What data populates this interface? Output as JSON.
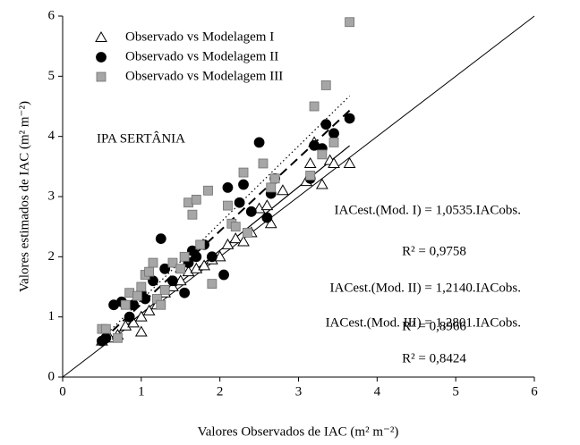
{
  "chart_data": {
    "type": "scatter",
    "xlabel": "Valores Observados de IAC (m² m⁻²)",
    "ylabel": "Valores estimados de IAC (m² m⁻²)",
    "xlim": [
      0,
      6
    ],
    "ylim": [
      0,
      6
    ],
    "xticks": [
      0,
      1,
      2,
      3,
      4,
      5,
      6
    ],
    "yticks": [
      0,
      1,
      2,
      3,
      4,
      5,
      6
    ],
    "legend": "upper left",
    "identity_line": true,
    "annotations": [
      "IPA SERTÂNIA",
      "IACest.(Mod. I) = 1,0535.IACobs.",
      "R² = 0,9758",
      "IACest.(Mod. II) = 1,2140.IACobs.",
      "R² = 0,8966",
      "IACest.(Mod. III) = 1,2801.IACobs.",
      "R² = 0,8424"
    ],
    "fit_lines": [
      {
        "slope": 1.0535,
        "x": [
          0.5,
          3.65
        ],
        "style": "solid"
      },
      {
        "slope": 1.214,
        "x": [
          0.5,
          3.65
        ],
        "style": "dashed"
      },
      {
        "slope": 1.2801,
        "x": [
          0.5,
          3.65
        ],
        "style": "dotted"
      }
    ],
    "series": [
      {
        "name": "Observado vs Modelagem I",
        "marker": "triangle",
        "color": "#ffffff",
        "x": [
          0.5,
          0.6,
          0.7,
          0.8,
          0.9,
          1.0,
          1.0,
          1.1,
          1.2,
          1.3,
          1.4,
          1.5,
          1.6,
          1.7,
          1.8,
          1.9,
          2.0,
          2.1,
          2.2,
          2.3,
          2.4,
          2.5,
          2.6,
          2.65,
          2.8,
          3.1,
          3.15,
          3.3,
          3.4,
          3.45,
          3.65,
          3.2
        ],
        "values": [
          0.6,
          0.65,
          0.7,
          0.85,
          0.9,
          0.75,
          1.0,
          1.1,
          1.2,
          1.4,
          1.5,
          1.6,
          1.75,
          1.8,
          1.85,
          1.95,
          2.0,
          2.2,
          2.3,
          2.25,
          2.4,
          2.8,
          2.85,
          2.55,
          3.1,
          3.25,
          3.55,
          3.2,
          3.6,
          3.55,
          3.55,
          3.9
        ]
      },
      {
        "name": "Observado vs Modelagem II",
        "marker": "circle",
        "color": "#000000",
        "x": [
          0.5,
          0.55,
          0.65,
          0.75,
          0.85,
          0.9,
          1.0,
          1.05,
          1.15,
          1.25,
          1.3,
          1.4,
          1.55,
          1.6,
          1.65,
          1.7,
          1.8,
          1.9,
          2.05,
          2.1,
          2.25,
          2.3,
          2.4,
          2.5,
          2.6,
          2.65,
          2.7,
          3.15,
          3.3,
          3.35,
          3.45,
          3.65,
          3.2
        ],
        "values": [
          0.6,
          0.65,
          1.2,
          1.25,
          1.0,
          1.2,
          1.4,
          1.3,
          1.6,
          2.3,
          1.8,
          1.6,
          1.4,
          1.9,
          2.1,
          2.0,
          2.2,
          2.0,
          1.7,
          3.15,
          2.9,
          3.2,
          2.75,
          3.9,
          2.65,
          3.05,
          3.3,
          3.3,
          3.8,
          4.2,
          4.05,
          4.3,
          3.85
        ]
      },
      {
        "name": "Observado vs Modelagem III",
        "marker": "square",
        "color": "#a6a6a6",
        "x": [
          0.5,
          0.55,
          0.7,
          0.8,
          0.85,
          0.95,
          1.0,
          1.05,
          1.1,
          1.15,
          1.2,
          1.25,
          1.3,
          1.4,
          1.5,
          1.55,
          1.6,
          1.65,
          1.7,
          1.75,
          1.85,
          1.9,
          2.1,
          2.15,
          2.2,
          2.3,
          2.35,
          2.55,
          2.65,
          2.7,
          3.2,
          3.3,
          3.35,
          3.45,
          3.65,
          3.15
        ],
        "values": [
          0.8,
          0.8,
          0.65,
          1.2,
          1.4,
          1.35,
          1.5,
          1.7,
          1.75,
          1.9,
          1.3,
          1.2,
          1.45,
          1.9,
          1.8,
          2.0,
          2.9,
          2.7,
          2.95,
          2.2,
          3.1,
          1.55,
          2.85,
          2.55,
          2.5,
          3.4,
          2.4,
          3.55,
          3.15,
          3.3,
          4.5,
          3.7,
          4.85,
          3.9,
          5.9,
          3.35
        ]
      }
    ]
  }
}
